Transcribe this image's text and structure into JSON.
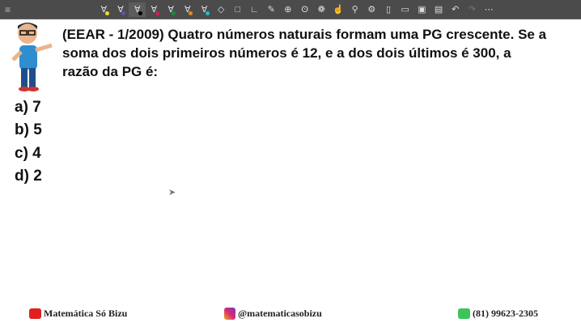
{
  "toolbar": {
    "menu_icon": "hamburger-icon",
    "tools": [
      {
        "icon": "pen-icon",
        "color": "#e8e020"
      },
      {
        "icon": "pen-icon",
        "color": "#6a4fb0"
      },
      {
        "icon": "pen-icon",
        "color": "#000000",
        "active": true
      },
      {
        "icon": "pen-icon",
        "color": "#d0204a"
      },
      {
        "icon": "pen-icon",
        "color": "#1f8a3a"
      },
      {
        "icon": "pen-icon",
        "color": "#e88a20"
      },
      {
        "icon": "pen-icon",
        "color": "#20c0c0"
      },
      {
        "icon": "eraser-icon"
      },
      {
        "icon": "rectangle-icon"
      },
      {
        "icon": "axes-icon"
      },
      {
        "icon": "pencil-icon"
      },
      {
        "icon": "target-icon"
      },
      {
        "icon": "lasso-icon"
      },
      {
        "icon": "palette-icon"
      },
      {
        "icon": "hand-icon"
      },
      {
        "icon": "zoom-icon"
      },
      {
        "icon": "settings-icon"
      },
      {
        "icon": "new-page-icon"
      },
      {
        "icon": "open-folder-icon"
      },
      {
        "icon": "save-icon"
      },
      {
        "icon": "clipboard-icon"
      },
      {
        "icon": "undo-icon"
      },
      {
        "icon": "redo-icon"
      },
      {
        "icon": "more-icon"
      }
    ]
  },
  "question": {
    "text": "(EEAR - 1/2009) Quatro números naturais formam uma PG crescente. Se a soma dos dois primeiros números é 12, e a dos dois últimos é 300, a razão da PG é:"
  },
  "options": [
    "a) 7",
    "b) 5",
    "c) 4",
    "d) 2"
  ],
  "footer": {
    "youtube": "Matemática Só Bizu",
    "instagram": "@matematicasobizu",
    "whatsapp": "(81) 99623-2305"
  }
}
